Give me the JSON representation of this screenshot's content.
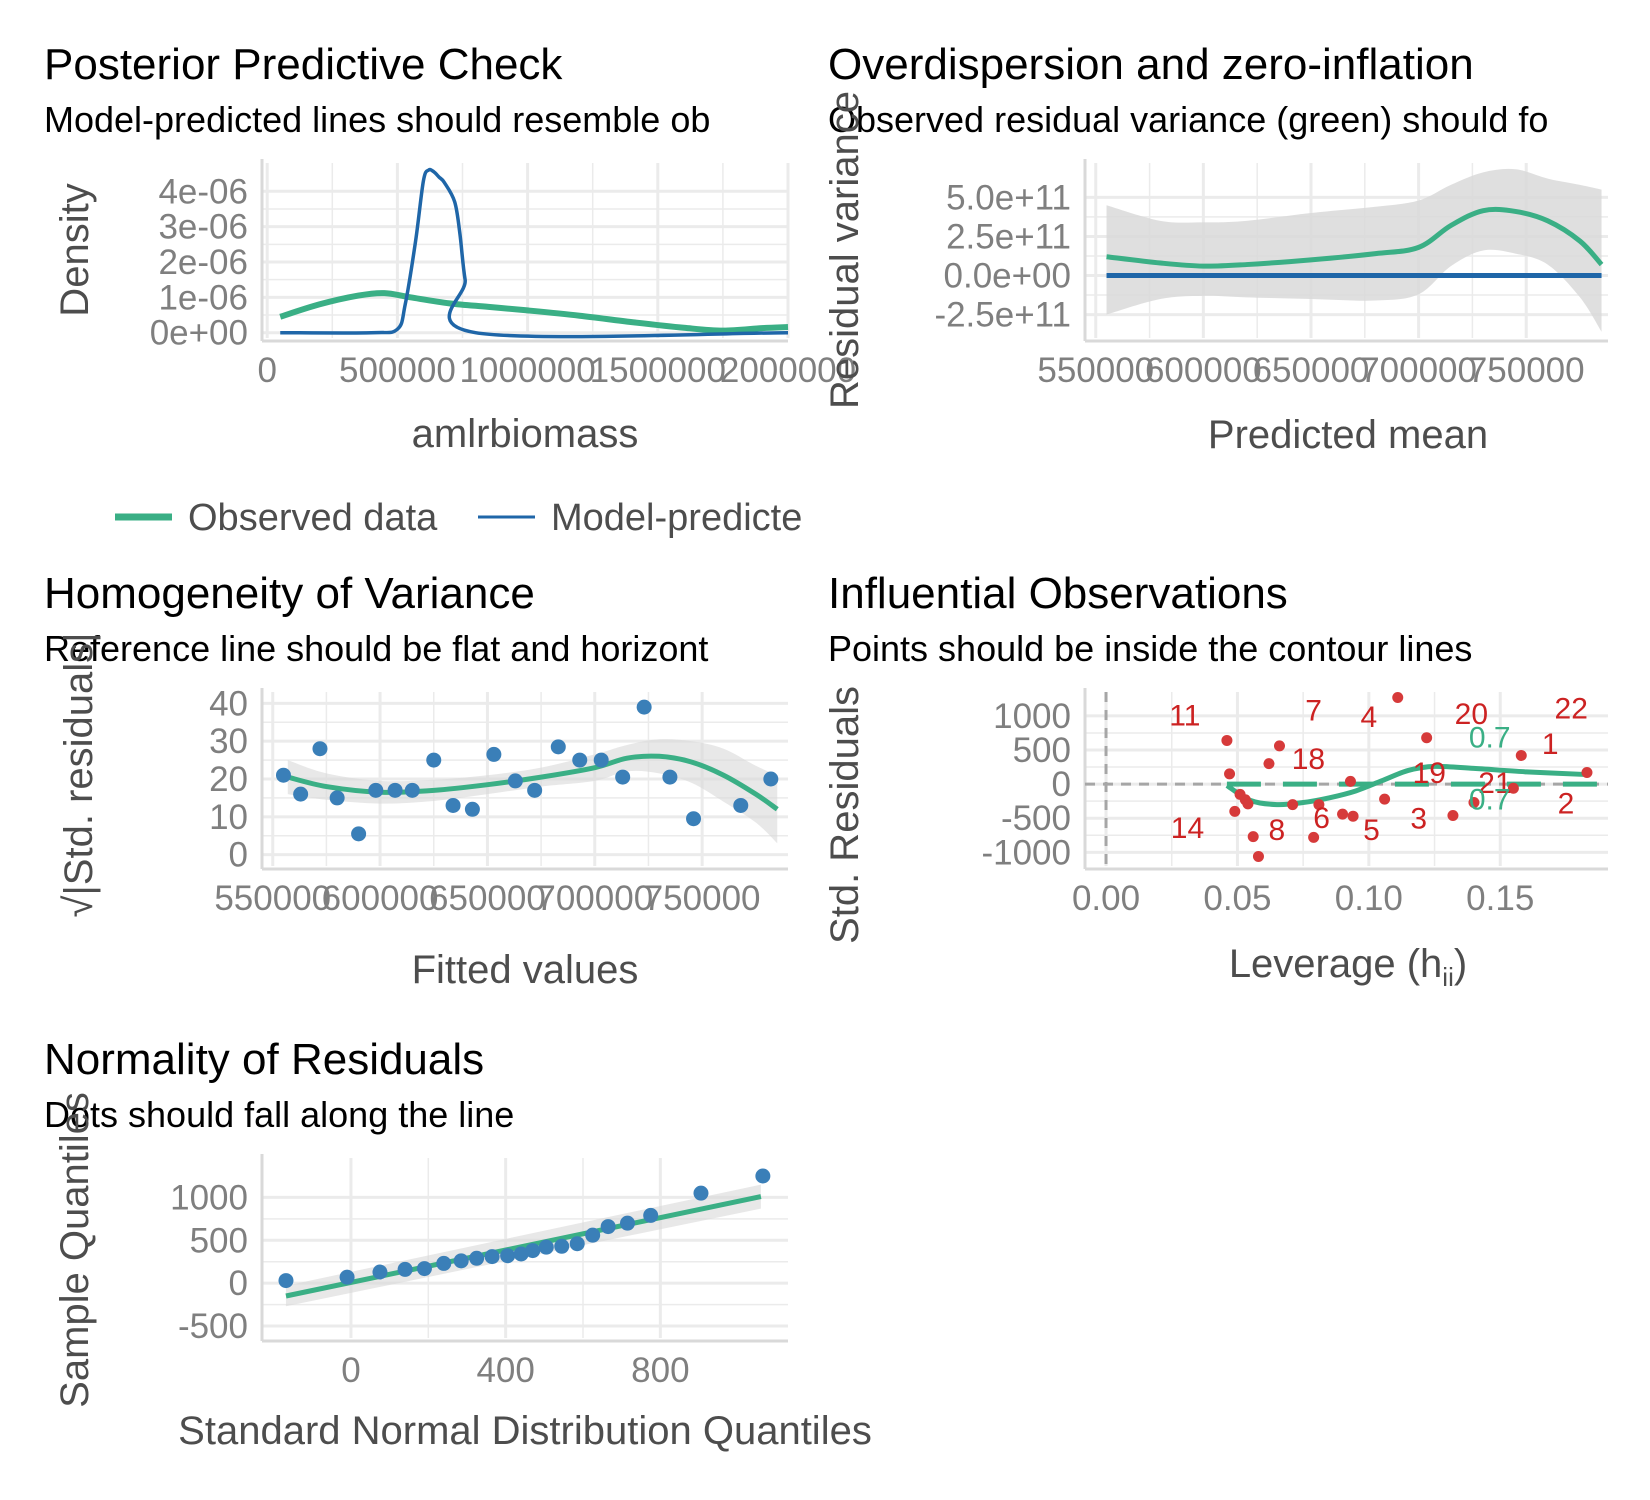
{
  "colors": {
    "observed": "#3aaf85",
    "predicted": "#1f66a8",
    "points": "#3a7fb8",
    "influential": "#d63a3a",
    "ribbon": "#d9d9d9",
    "grid": "#ebebeb"
  },
  "chart_data": [
    {
      "id": "ppc",
      "type": "line",
      "title": "Posterior Predictive Check",
      "subtitle": "Model-predicted lines should resemble ob",
      "xlabel": "amlrbiomass",
      "ylabel": "Density",
      "xlim": [
        -20000,
        2000000
      ],
      "ylim": [
        -1.5e-07,
        4.8e-06
      ],
      "xticks": [
        0,
        500000,
        1000000,
        1500000,
        2000000
      ],
      "xtick_labels": [
        "0",
        "500000",
        "1000000",
        "1500000",
        "2000000"
      ],
      "yticks": [
        0,
        1e-06,
        2e-06,
        3e-06,
        4e-06
      ],
      "ytick_labels": [
        "0e+00",
        "1e-06",
        "2e-06",
        "3e-06",
        "4e-06"
      ],
      "legend_position": "bottom",
      "legend": [
        "Observed data",
        "Model-predicte"
      ],
      "series": [
        {
          "name": "Observed data",
          "color_key": "observed",
          "x": [
            50000,
            200000,
            350000,
            450000,
            550000,
            700000,
            850000,
            1000000,
            1200000,
            1400000,
            1600000,
            1750000,
            1900000,
            2000000
          ],
          "y": [
            4.5e-07,
            8e-07,
            1.05e-06,
            1.12e-06,
            1e-06,
            8.3e-07,
            7.3e-07,
            6.3e-07,
            4.8e-07,
            3e-07,
            1.4e-07,
            6e-08,
            1.3e-07,
            1.6e-07
          ]
        },
        {
          "name": "Model-predicte",
          "color_key": "predicted",
          "x": [
            50000,
            400000,
            500000,
            530000,
            570000,
            600000,
            620000,
            640000,
            660000,
            680000,
            720000,
            740000,
            760000,
            800000,
            2000000
          ],
          "y": [
            0,
            0,
            1e-07,
            8e-07,
            2.6e-06,
            4.3e-06,
            4.6e-06,
            4.55e-06,
            4.4e-06,
            4.25e-06,
            3.7e-06,
            2.8e-06,
            1.5e-06,
            0,
            0
          ]
        }
      ]
    },
    {
      "id": "overdispersion",
      "type": "line",
      "title": "Overdispersion and zero-inflation",
      "subtitle": "Observed residual variance (green) should fo",
      "xlabel": "Predicted mean",
      "ylabel": "Residual variance",
      "xlim": [
        545000,
        788000
      ],
      "ylim": [
        -400000000000.0,
        720000000000.0
      ],
      "xticks": [
        550000,
        600000,
        650000,
        700000,
        750000
      ],
      "xtick_labels": [
        "550000",
        "600000",
        "650000",
        "700000",
        "750000"
      ],
      "yticks": [
        -250000000000.0,
        0,
        250000000000.0,
        500000000000.0
      ],
      "ytick_labels": [
        "-2.5e+11",
        "0.0e+00",
        "2.5e+11",
        "5.0e+11"
      ],
      "series": [
        {
          "name": "",
          "color_key": "observed",
          "x": [
            555000,
            580000,
            600000,
            620000,
            650000,
            680000,
            700000,
            715000,
            730000,
            745000,
            760000,
            775000,
            785000
          ],
          "y": [
            120000000000.0,
            80000000000.0,
            60000000000.0,
            70000000000.0,
            100000000000.0,
            140000000000.0,
            180000000000.0,
            320000000000.0,
            415000000000.0,
            410000000000.0,
            350000000000.0,
            220000000000.0,
            70000000000.0
          ],
          "upper": [
            450000000000.0,
            350000000000.0,
            340000000000.0,
            350000000000.0,
            400000000000.0,
            440000000000.0,
            480000000000.0,
            580000000000.0,
            660000000000.0,
            680000000000.0,
            620000000000.0,
            580000000000.0,
            550000000000.0
          ],
          "lower": [
            -250000000000.0,
            -150000000000.0,
            -130000000000.0,
            -140000000000.0,
            -150000000000.0,
            -160000000000.0,
            -120000000000.0,
            60000000000.0,
            160000000000.0,
            140000000000.0,
            70000000000.0,
            -140000000000.0,
            -360000000000.0
          ]
        },
        {
          "name": "",
          "color_key": "predicted",
          "x": [
            555000,
            785000
          ],
          "y": [
            0,
            0
          ]
        }
      ]
    },
    {
      "id": "homogeneity",
      "type": "scatter",
      "title": "Homogeneity of Variance",
      "subtitle": "Reference line should be flat and horizont",
      "xlabel": "Fitted values",
      "ylabel": "√|Std. residuals|",
      "xlim": [
        545000,
        790000
      ],
      "ylim": [
        -3,
        43
      ],
      "xticks": [
        550000,
        600000,
        650000,
        700000,
        750000
      ],
      "xtick_labels": [
        "550000",
        "600000",
        "650000",
        "700000",
        "750000"
      ],
      "yticks": [
        0,
        10,
        20,
        30,
        40
      ],
      "ytick_labels": [
        "0",
        "10",
        "20",
        "30",
        "40"
      ],
      "points": {
        "x": [
          555000,
          563000,
          572000,
          580000,
          590000,
          598000,
          607000,
          615000,
          625000,
          634000,
          643000,
          653000,
          663000,
          672000,
          683000,
          693000,
          703000,
          713000,
          723000,
          735000,
          746000,
          768000,
          782000
        ],
        "y": [
          21,
          16,
          28,
          15,
          5.5,
          17,
          17,
          17,
          25,
          13,
          12,
          26.5,
          19.5,
          17,
          28.5,
          25,
          25,
          20.5,
          39,
          20.5,
          9.5,
          13,
          20
        ]
      },
      "smooth": {
        "x": [
          557000,
          575000,
          600000,
          625000,
          650000,
          675000,
          700000,
          715000,
          730000,
          745000,
          760000,
          775000,
          785000
        ],
        "y": [
          20.5,
          18,
          16.5,
          17,
          18.5,
          20.5,
          23,
          25.5,
          26,
          24.5,
          21,
          16,
          12
        ],
        "upper": [
          25,
          21.5,
          19.5,
          19.8,
          21,
          23,
          26.5,
          29,
          30.5,
          30,
          28,
          23.5,
          21
        ],
        "lower": [
          16,
          14.5,
          13.5,
          14.2,
          16,
          18,
          19.5,
          22,
          21.5,
          19,
          14,
          8.5,
          3
        ]
      }
    },
    {
      "id": "influential",
      "type": "scatter",
      "title": "Influential Observations",
      "subtitle": "Points should be inside the contour lines",
      "xlabel": "Leverage (h",
      "xlabel_sub": "ii",
      "xlabel_end": ")",
      "ylabel": "Std. Residuals",
      "xlim": [
        -0.008,
        0.191
      ],
      "ylim": [
        -1200,
        1350
      ],
      "xticks": [
        0.0,
        0.05,
        0.1,
        0.15
      ],
      "xtick_labels": [
        "0.00",
        "0.05",
        "0.10",
        "0.15"
      ],
      "yticks": [
        -1000,
        -500,
        0,
        500,
        1000
      ],
      "ytick_labels": [
        "-1000",
        "-500",
        "0",
        "500",
        "1000"
      ],
      "points": {
        "x": [
          0.046,
          0.047,
          0.049,
          0.051,
          0.053,
          0.054,
          0.056,
          0.058,
          0.062,
          0.066,
          0.071,
          0.079,
          0.081,
          0.09,
          0.093,
          0.094,
          0.106,
          0.111,
          0.122,
          0.132,
          0.14,
          0.155,
          0.158,
          0.183
        ],
        "y": [
          640,
          150,
          -400,
          -150,
          -230,
          -290,
          -770,
          -1060,
          300,
          560,
          -300,
          -780,
          -300,
          -440,
          40,
          -470,
          -220,
          1270,
          680,
          -460,
          -270,
          -60,
          420,
          170
        ]
      },
      "labels": [
        {
          "text": "11",
          "x": 0.03,
          "y": 860
        },
        {
          "text": "7",
          "x": 0.079,
          "y": 930
        },
        {
          "text": "4",
          "x": 0.1,
          "y": 840
        },
        {
          "text": "20",
          "x": 0.139,
          "y": 880
        },
        {
          "text": "22",
          "x": 0.177,
          "y": 960
        },
        {
          "text": "18",
          "x": 0.077,
          "y": 220
        },
        {
          "text": "19",
          "x": 0.123,
          "y": 20
        },
        {
          "text": "21",
          "x": 0.148,
          "y": -130
        },
        {
          "text": "1",
          "x": 0.169,
          "y": 440
        },
        {
          "text": "2",
          "x": 0.175,
          "y": -430
        },
        {
          "text": "14",
          "x": 0.031,
          "y": -790
        },
        {
          "text": "8",
          "x": 0.065,
          "y": -820
        },
        {
          "text": "6",
          "x": 0.082,
          "y": -640
        },
        {
          "text": "5",
          "x": 0.101,
          "y": -820
        },
        {
          "text": "3",
          "x": 0.119,
          "y": -650
        }
      ],
      "contour_labels": [
        {
          "text": "0.7",
          "x": 0.146,
          "y": 540
        },
        {
          "text": "0.7",
          "x": 0.146,
          "y": -370
        }
      ],
      "smooth": {
        "x": [
          0.046,
          0.055,
          0.065,
          0.075,
          0.085,
          0.095,
          0.105,
          0.115,
          0.125,
          0.14,
          0.16,
          0.183
        ],
        "y": [
          -20,
          -240,
          -300,
          -270,
          -200,
          -100,
          50,
          200,
          260,
          230,
          180,
          140
        ]
      },
      "reference_lines": {
        "h": 0,
        "v": 0
      }
    },
    {
      "id": "qq",
      "type": "scatter",
      "title": "Normality of Residuals",
      "subtitle": "Dots should fall along the line",
      "xlabel": "Standard Normal Distribution Quantiles",
      "ylabel": "Sample Quantiles",
      "xlim": [
        -230,
        1130
      ],
      "ylim": [
        -640,
        1460
      ],
      "xticks": [
        0,
        400,
        800
      ],
      "xtick_labels": [
        "0",
        "400",
        "800"
      ],
      "yticks": [
        -500,
        0,
        500,
        1000
      ],
      "ytick_labels": [
        "-500",
        "0",
        "500",
        "1000"
      ],
      "points": {
        "x": [
          -168,
          -10,
          75,
          140,
          190,
          240,
          285,
          325,
          365,
          405,
          440,
          470,
          505,
          545,
          585,
          625,
          665,
          715,
          775,
          905,
          1065
        ],
        "y": [
          30,
          70,
          130,
          160,
          170,
          230,
          260,
          290,
          310,
          320,
          340,
          380,
          420,
          430,
          460,
          560,
          660,
          700,
          790,
          1050,
          1250
        ]
      },
      "smooth": {
        "x": [
          -168,
          1060
        ],
        "y": [
          -150,
          1010
        ],
        "upper": [
          -30,
          1150
        ],
        "lower": [
          -270,
          870
        ]
      }
    }
  ]
}
